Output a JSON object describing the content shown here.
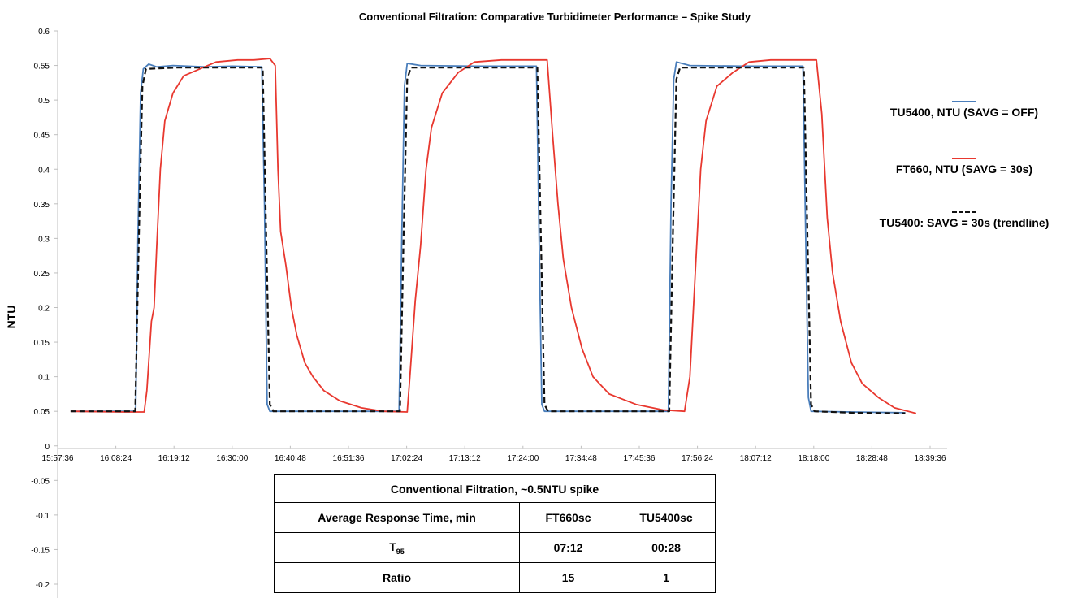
{
  "chart_data": {
    "type": "line",
    "title": "Conventional Filtration: Comparative Turbidimeter Performance – Spike Study",
    "xlabel": "",
    "ylabel": "NTU",
    "ylim": [
      -0.2,
      0.6
    ],
    "xlim": [
      "15:57:36",
      "18:39:36"
    ],
    "x_ticks": [
      "15:57:36",
      "16:08:24",
      "16:19:12",
      "16:30:00",
      "16:40:48",
      "16:51:36",
      "17:02:24",
      "17:13:12",
      "17:24:00",
      "17:34:48",
      "17:45:36",
      "17:56:24",
      "18:07:12",
      "18:18:00",
      "18:28:48",
      "18:39:36"
    ],
    "y_ticks": [
      "0.6",
      "0.55",
      "0.5",
      "0.45",
      "0.4",
      "0.35",
      "0.3",
      "0.25",
      "0.2",
      "0.15",
      "0.1",
      "0.05",
      "0",
      "-0.05",
      "-0.1",
      "-0.15",
      "-0.2"
    ],
    "y_tick_values": [
      0.6,
      0.55,
      0.5,
      0.45,
      0.4,
      0.35,
      0.3,
      0.25,
      0.2,
      0.15,
      0.1,
      0.05,
      0,
      -0.05,
      -0.1,
      -0.15,
      -0.2
    ],
    "grid": false,
    "legend_position": "right",
    "series": [
      {
        "name": "TU5400, NTU (SAVG = OFF)",
        "color": "#4a7ebb",
        "style": "solid",
        "points": [
          [
            "16:00:00",
            0.05
          ],
          [
            "16:08:00",
            0.05
          ],
          [
            "16:12:06",
            0.05
          ],
          [
            "16:12:30",
            0.3
          ],
          [
            "16:13:00",
            0.51
          ],
          [
            "16:13:30",
            0.545
          ],
          [
            "16:14:30",
            0.552
          ],
          [
            "16:16:00",
            0.548
          ],
          [
            "16:19:00",
            0.55
          ],
          [
            "16:25:00",
            0.548
          ],
          [
            "16:30:00",
            0.549
          ],
          [
            "16:35:30",
            0.548
          ],
          [
            "16:36:00",
            0.35
          ],
          [
            "16:36:30",
            0.06
          ],
          [
            "16:37:00",
            0.05
          ],
          [
            "16:45:00",
            0.05
          ],
          [
            "16:55:00",
            0.05
          ],
          [
            "17:01:00",
            0.05
          ],
          [
            "17:01:30",
            0.3
          ],
          [
            "17:02:00",
            0.52
          ],
          [
            "17:02:30",
            0.553
          ],
          [
            "17:05:00",
            0.55
          ],
          [
            "17:15:00",
            0.549
          ],
          [
            "17:24:00",
            0.549
          ],
          [
            "17:26:30",
            0.549
          ],
          [
            "17:27:00",
            0.3
          ],
          [
            "17:27:30",
            0.06
          ],
          [
            "17:28:00",
            0.05
          ],
          [
            "17:40:00",
            0.05
          ],
          [
            "17:51:00",
            0.05
          ],
          [
            "17:51:30",
            0.35
          ],
          [
            "17:52:00",
            0.53
          ],
          [
            "17:52:30",
            0.555
          ],
          [
            "17:55:00",
            0.55
          ],
          [
            "18:05:00",
            0.549
          ],
          [
            "18:16:00",
            0.549
          ],
          [
            "18:16:30",
            0.3
          ],
          [
            "18:17:00",
            0.07
          ],
          [
            "18:17:30",
            0.05
          ],
          [
            "18:25:00",
            0.049
          ],
          [
            "18:35:00",
            0.048
          ]
        ]
      },
      {
        "name": "FT660, NTU (SAVG = 30s)",
        "color": "#e8382f",
        "style": "solid",
        "points": [
          [
            "16:00:00",
            0.05
          ],
          [
            "16:10:00",
            0.049
          ],
          [
            "16:13:40",
            0.049
          ],
          [
            "16:14:10",
            0.08
          ],
          [
            "16:15:00",
            0.18
          ],
          [
            "16:15:30",
            0.2
          ],
          [
            "16:16:00",
            0.29
          ],
          [
            "16:16:40",
            0.4
          ],
          [
            "16:17:30",
            0.47
          ],
          [
            "16:19:00",
            0.51
          ],
          [
            "16:21:00",
            0.535
          ],
          [
            "16:24:00",
            0.545
          ],
          [
            "16:27:00",
            0.555
          ],
          [
            "16:31:00",
            0.558
          ],
          [
            "16:34:00",
            0.558
          ],
          [
            "16:37:00",
            0.56
          ],
          [
            "16:38:00",
            0.55
          ],
          [
            "16:38:30",
            0.4
          ],
          [
            "16:39:00",
            0.31
          ],
          [
            "16:40:00",
            0.26
          ],
          [
            "16:41:00",
            0.2
          ],
          [
            "16:42:00",
            0.16
          ],
          [
            "16:43:30",
            0.12
          ],
          [
            "16:45:00",
            0.1
          ],
          [
            "16:47:00",
            0.08
          ],
          [
            "16:50:00",
            0.065
          ],
          [
            "16:54:00",
            0.055
          ],
          [
            "16:58:00",
            0.05
          ],
          [
            "17:02:30",
            0.049
          ],
          [
            "17:03:00",
            0.1
          ],
          [
            "17:04:00",
            0.21
          ],
          [
            "17:05:00",
            0.29
          ],
          [
            "17:06:00",
            0.4
          ],
          [
            "17:07:00",
            0.46
          ],
          [
            "17:09:00",
            0.51
          ],
          [
            "17:12:00",
            0.54
          ],
          [
            "17:15:00",
            0.555
          ],
          [
            "17:20:00",
            0.558
          ],
          [
            "17:25:00",
            0.558
          ],
          [
            "17:28:30",
            0.558
          ],
          [
            "17:29:30",
            0.45
          ],
          [
            "17:30:30",
            0.35
          ],
          [
            "17:31:30",
            0.27
          ],
          [
            "17:33:00",
            0.2
          ],
          [
            "17:35:00",
            0.14
          ],
          [
            "17:37:00",
            0.1
          ],
          [
            "17:40:00",
            0.075
          ],
          [
            "17:45:00",
            0.06
          ],
          [
            "17:50:00",
            0.052
          ],
          [
            "17:54:00",
            0.05
          ],
          [
            "17:55:00",
            0.1
          ],
          [
            "17:56:00",
            0.25
          ],
          [
            "17:57:00",
            0.4
          ],
          [
            "17:58:00",
            0.47
          ],
          [
            "18:00:00",
            0.52
          ],
          [
            "18:03:00",
            0.54
          ],
          [
            "18:06:00",
            0.555
          ],
          [
            "18:10:00",
            0.558
          ],
          [
            "18:15:00",
            0.558
          ],
          [
            "18:18:30",
            0.558
          ],
          [
            "18:19:30",
            0.48
          ],
          [
            "18:20:30",
            0.33
          ],
          [
            "18:21:30",
            0.25
          ],
          [
            "18:23:00",
            0.18
          ],
          [
            "18:25:00",
            0.12
          ],
          [
            "18:27:00",
            0.09
          ],
          [
            "18:30:00",
            0.07
          ],
          [
            "18:33:00",
            0.055
          ],
          [
            "18:37:00",
            0.047
          ]
        ]
      },
      {
        "name": "TU5400: SAVG = 30s (trendline)",
        "color": "#111111",
        "style": "dashed",
        "points": [
          [
            "16:00:00",
            0.05
          ],
          [
            "16:08:00",
            0.05
          ],
          [
            "16:12:00",
            0.05
          ],
          [
            "16:12:40",
            0.3
          ],
          [
            "16:13:20",
            0.52
          ],
          [
            "16:14:00",
            0.545
          ],
          [
            "16:20:00",
            0.547
          ],
          [
            "16:30:00",
            0.547
          ],
          [
            "16:35:40",
            0.547
          ],
          [
            "16:36:20",
            0.3
          ],
          [
            "16:37:00",
            0.06
          ],
          [
            "16:37:40",
            0.05
          ],
          [
            "16:55:00",
            0.05
          ],
          [
            "17:01:10",
            0.05
          ],
          [
            "17:01:50",
            0.3
          ],
          [
            "17:02:30",
            0.53
          ],
          [
            "17:03:10",
            0.547
          ],
          [
            "17:15:00",
            0.547
          ],
          [
            "17:26:40",
            0.547
          ],
          [
            "17:27:20",
            0.3
          ],
          [
            "17:28:00",
            0.06
          ],
          [
            "17:28:40",
            0.05
          ],
          [
            "17:40:00",
            0.05
          ],
          [
            "17:51:10",
            0.05
          ],
          [
            "17:51:50",
            0.3
          ],
          [
            "17:52:30",
            0.53
          ],
          [
            "17:53:10",
            0.547
          ],
          [
            "18:05:00",
            0.547
          ],
          [
            "18:16:10",
            0.547
          ],
          [
            "18:16:50",
            0.3
          ],
          [
            "18:17:30",
            0.06
          ],
          [
            "18:18:10",
            0.05
          ],
          [
            "18:25:00",
            0.048
          ],
          [
            "18:35:00",
            0.047
          ]
        ]
      }
    ]
  },
  "results_table": {
    "title": "Conventional Filtration, ~0.5NTU spike",
    "header": {
      "label": "Average Response Time, min",
      "col1": "FT660sc",
      "col2": "TU5400sc"
    },
    "rows": [
      {
        "label": "T",
        "label_sub": "95",
        "col1": "07:12",
        "col2": "00:28"
      },
      {
        "label": "Ratio",
        "col1": "15",
        "col2": "1"
      }
    ]
  }
}
